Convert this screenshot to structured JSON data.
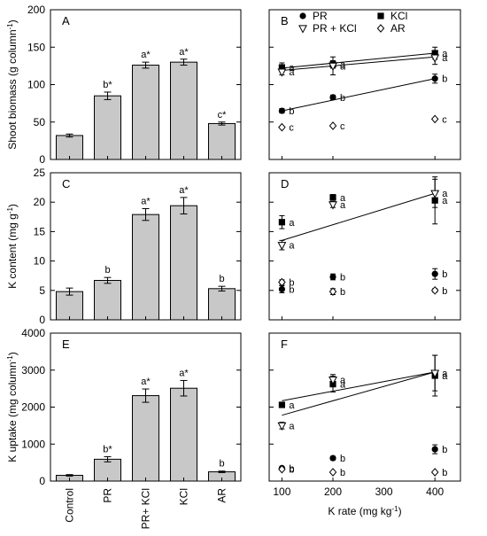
{
  "chart_data": [
    {
      "type": "bar",
      "panel": "A",
      "ylabel": "Shoot biomass (g column-1)",
      "categories": [
        "Control",
        "PR",
        "PR+ KCl",
        "KCl",
        "AR"
      ],
      "values": [
        32,
        85,
        126,
        130,
        48
      ],
      "errors": [
        2,
        5,
        4,
        4,
        2
      ],
      "letters": [
        "",
        "b*",
        "a*",
        "a*",
        "c*"
      ],
      "ylim": [
        0,
        200
      ],
      "yticks": [
        0,
        50,
        100,
        150,
        200
      ]
    },
    {
      "type": "scatter",
      "panel": "B",
      "x": [
        100,
        200,
        400
      ],
      "xlim": [
        75,
        450
      ],
      "ylim": [
        0,
        200
      ],
      "yticks": [
        0,
        50,
        100,
        150,
        200
      ],
      "legend": [
        "PR",
        "KCl",
        "PR + KCl",
        "AR"
      ],
      "series": [
        {
          "name": "PR",
          "marker": "circle-filled",
          "values": [
            65,
            83,
            108
          ],
          "errors": [
            3,
            3,
            6
          ],
          "letters": [
            "b",
            "b",
            "b"
          ],
          "fit": [
            65,
            108
          ]
        },
        {
          "name": "KCl",
          "marker": "square-filled",
          "values": [
            123,
            127,
            142
          ],
          "errors": [
            6,
            5,
            8
          ],
          "letters": [
            "a",
            "a",
            "a"
          ],
          "fit": [
            122,
            142
          ]
        },
        {
          "name": "PR + KCl",
          "marker": "triangle-down-open",
          "values": [
            117,
            125,
            136
          ],
          "errors": [
            4,
            12,
            9
          ],
          "letters": [
            "a",
            "a",
            "a"
          ],
          "fit": [
            119,
            137
          ]
        },
        {
          "name": "AR",
          "marker": "diamond-open",
          "values": [
            43,
            45,
            54
          ],
          "errors": [
            1,
            1,
            1
          ],
          "letters": [
            "c",
            "c",
            "c"
          ]
        }
      ]
    },
    {
      "type": "bar",
      "panel": "C",
      "ylabel": "K content (mg g-1)",
      "categories": [
        "Control",
        "PR",
        "PR+ KCl",
        "KCl",
        "AR"
      ],
      "values": [
        4.8,
        6.7,
        17.9,
        19.4,
        5.3
      ],
      "errors": [
        0.6,
        0.5,
        1.0,
        1.4,
        0.4
      ],
      "letters": [
        "",
        "b",
        "a*",
        "a*",
        "b"
      ],
      "ylim": [
        0,
        25
      ],
      "yticks": [
        0,
        5,
        10,
        15,
        20,
        25
      ]
    },
    {
      "type": "scatter",
      "panel": "D",
      "x": [
        100,
        200,
        400
      ],
      "xlim": [
        75,
        450
      ],
      "ylim": [
        0,
        25
      ],
      "yticks": [
        0,
        5,
        10,
        15,
        20,
        25
      ],
      "series": [
        {
          "name": "PR",
          "marker": "circle-filled",
          "values": [
            5.2,
            7.3,
            7.8
          ],
          "errors": [
            0.6,
            0.5,
            0.9
          ],
          "letters": [
            "b",
            "b",
            "b"
          ]
        },
        {
          "name": "KCl",
          "marker": "square-filled",
          "values": [
            16.6,
            20.8,
            20.3
          ],
          "errors": [
            1.1,
            0.5,
            4.0
          ],
          "letters": [
            "a",
            "a",
            "a"
          ]
        },
        {
          "name": "PR + KCl",
          "marker": "triangle-down-open",
          "values": [
            12.7,
            19.6,
            21.5
          ],
          "errors": [
            0.8,
            0.5,
            2.4
          ],
          "letters": [
            "a",
            "a",
            "a"
          ],
          "fit": [
            13.5,
            21.5
          ]
        },
        {
          "name": "AR",
          "marker": "diamond-open",
          "values": [
            6.4,
            4.8,
            5.0
          ],
          "errors": [
            0.4,
            0.5,
            0.3
          ],
          "letters": [
            "b",
            "b",
            "b"
          ]
        }
      ]
    },
    {
      "type": "bar",
      "panel": "E",
      "ylabel": "K uptake (mg column-1)",
      "categories": [
        "Control",
        "PR",
        "PR+ KCl",
        "KCl",
        "AR"
      ],
      "values": [
        155,
        590,
        2310,
        2510,
        250
      ],
      "errors": [
        20,
        70,
        180,
        210,
        20
      ],
      "letters": [
        "",
        "b*",
        "a*",
        "a*",
        "b"
      ],
      "xlabel_rot": 90,
      "ylim": [
        0,
        4000
      ],
      "yticks": [
        0,
        1000,
        2000,
        3000,
        4000
      ]
    },
    {
      "type": "scatter",
      "panel": "F",
      "xlabel": "K rate (mg kg-1)",
      "x": [
        100,
        200,
        400
      ],
      "xlim": [
        75,
        450
      ],
      "xticks": [
        100,
        200,
        300,
        400
      ],
      "ylim": [
        0,
        4000
      ],
      "yticks": [
        0,
        1000,
        2000,
        3000,
        4000
      ],
      "series": [
        {
          "name": "PR",
          "marker": "circle-filled",
          "values": [
            350,
            620,
            860
          ],
          "errors": [
            30,
            50,
            120
          ],
          "letters": [
            "b",
            "b",
            "b"
          ]
        },
        {
          "name": "KCl",
          "marker": "square-filled",
          "values": [
            2060,
            2620,
            2850
          ],
          "errors": [
            60,
            210,
            550
          ],
          "letters": [
            "a",
            "a",
            "a"
          ],
          "fit": [
            2170,
            2950
          ]
        },
        {
          "name": "PR + KCl",
          "marker": "triangle-down-open",
          "values": [
            1500,
            2740,
            2920
          ],
          "errors": [
            90,
            140,
            480
          ],
          "letters": [
            "a",
            "a",
            "a"
          ],
          "fit": [
            1780,
            2950
          ]
        },
        {
          "name": "AR",
          "marker": "diamond-open",
          "values": [
            320,
            240,
            240
          ],
          "errors": [
            20,
            20,
            20
          ],
          "letters": [
            "b",
            "b",
            "b"
          ]
        }
      ]
    }
  ]
}
